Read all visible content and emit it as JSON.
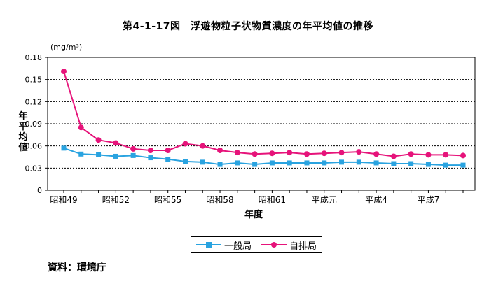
{
  "title": "第4-1-17図　浮遊物粒子状物質濃度の年平均値の推移",
  "source": "資料：環境庁",
  "colors": {
    "series1": "#29a3e0",
    "series2": "#e6137a",
    "grid": "#000000"
  },
  "chart_data": {
    "type": "line",
    "unit_label": "(mg/m³)",
    "ylabel": "年平均値",
    "xlabel": "年度",
    "ylim": [
      0,
      0.18
    ],
    "yticks": [
      "0",
      "0.03",
      "0.06",
      "0.09",
      "0.12",
      "0.15",
      "0.18"
    ],
    "grid": true,
    "legend_position": "bottom",
    "x": [
      "昭和49",
      "昭和50",
      "昭和51",
      "昭和52",
      "昭和53",
      "昭和54",
      "昭和55",
      "昭和56",
      "昭和57",
      "昭和58",
      "昭和59",
      "昭和60",
      "昭和61",
      "昭和62",
      "昭和63",
      "平成元",
      "平成2",
      "平成3",
      "平成4",
      "平成5",
      "平成6",
      "平成7",
      "平成8",
      "平成9"
    ],
    "x_tick_labels": [
      "昭和49",
      "",
      "",
      "昭和52",
      "",
      "",
      "昭和55",
      "",
      "",
      "昭和58",
      "",
      "",
      "昭和61",
      "",
      "",
      "平成元",
      "",
      "",
      "平成4",
      "",
      "",
      "平成7",
      "",
      ""
    ],
    "series": [
      {
        "name": "一般局",
        "marker": "square",
        "values": [
          0.057,
          0.049,
          0.048,
          0.046,
          0.047,
          0.044,
          0.042,
          0.039,
          0.038,
          0.035,
          0.037,
          0.035,
          0.037,
          0.037,
          0.037,
          0.037,
          0.038,
          0.038,
          0.037,
          0.036,
          0.036,
          0.035,
          0.034,
          0.034
        ]
      },
      {
        "name": "自排局",
        "marker": "circle",
        "values": [
          0.161,
          0.085,
          0.068,
          0.064,
          0.056,
          0.054,
          0.054,
          0.063,
          0.06,
          0.054,
          0.051,
          0.049,
          0.05,
          0.051,
          0.049,
          0.05,
          0.051,
          0.052,
          0.049,
          0.046,
          0.049,
          0.048,
          0.048,
          0.047
        ]
      }
    ]
  }
}
